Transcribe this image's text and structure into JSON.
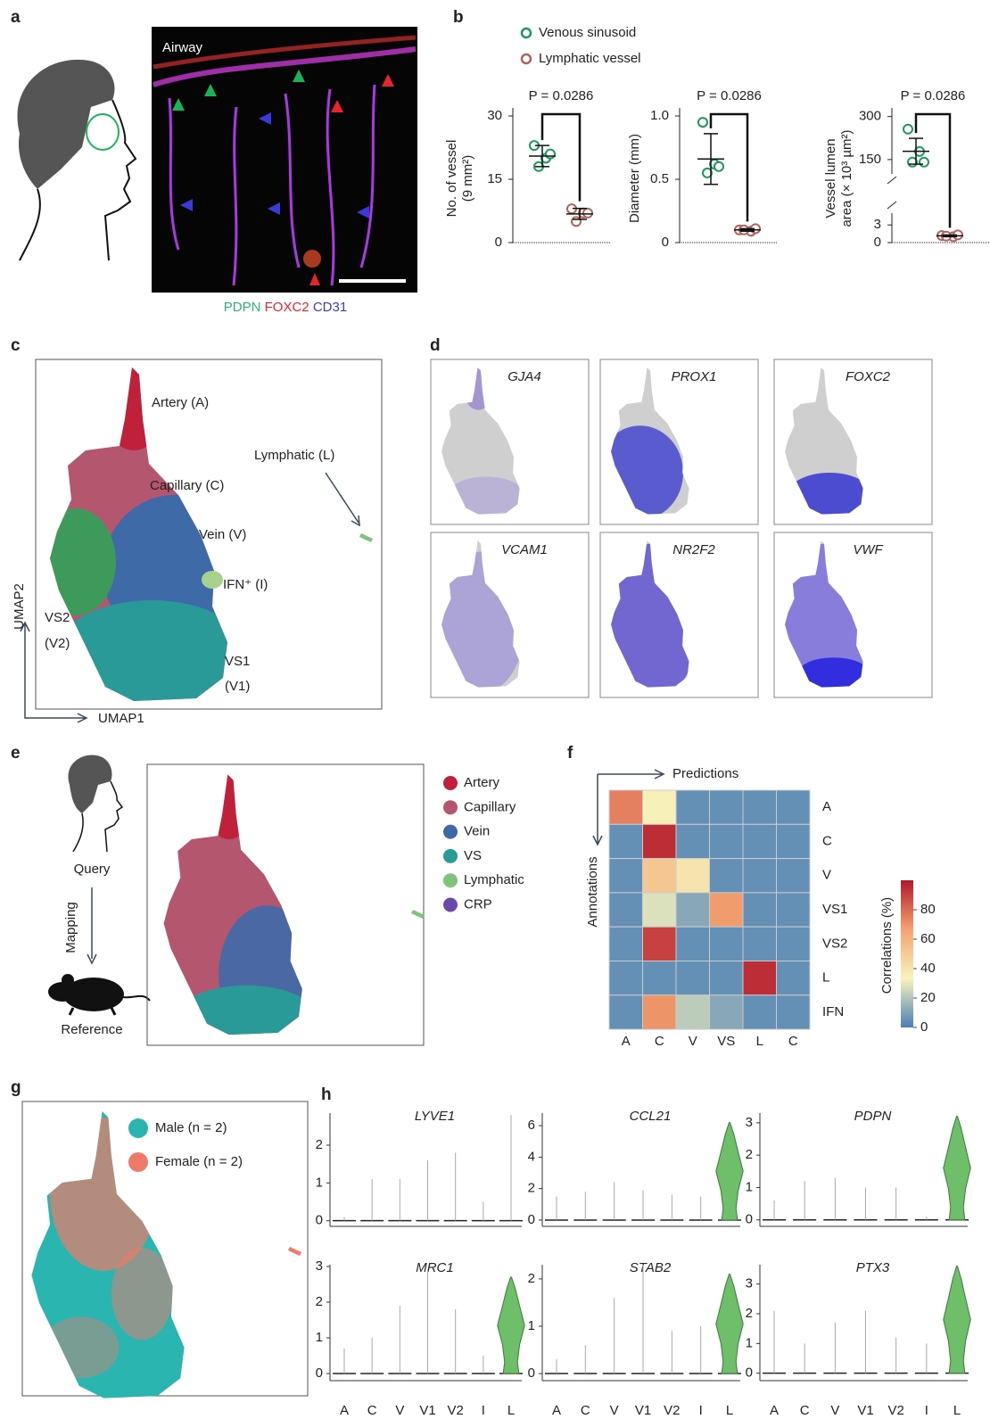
{
  "figure": {
    "panel_labels": [
      "a",
      "b",
      "c",
      "d",
      "e",
      "f",
      "g",
      "h"
    ],
    "a": {
      "image_label": "Airway",
      "stain_labels": [
        {
          "text": "PDPN",
          "color": "#2bb673"
        },
        {
          "text": "FOXC2",
          "color": "#e8232a"
        },
        {
          "text": "CD31",
          "color": "#3a3ad6"
        }
      ]
    },
    "c": {
      "labels": [
        "Artery (A)",
        "Capillary (C)",
        "Lymphatic (L)",
        "Vein (V)",
        "IFN⁺ (I)",
        "VS2",
        "(V2)",
        "VS1",
        "(V1)"
      ],
      "xlabel": "UMAP1",
      "ylabel": "UMAP2"
    },
    "d": {
      "genes": [
        "GJA4",
        "PROX1",
        "FOXC2",
        "VCAM1",
        "NR2F2",
        "VWF"
      ]
    },
    "e": {
      "query": "Query",
      "mapping": "Mapping",
      "reference": "Reference",
      "legend": [
        {
          "name": "Artery",
          "color": "#c0203a"
        },
        {
          "name": "Capillary",
          "color": "#b5566f"
        },
        {
          "name": "Vein",
          "color": "#3e6aa8"
        },
        {
          "name": "VS",
          "color": "#2a9a98"
        },
        {
          "name": "Lymphatic",
          "color": "#7fc47a"
        },
        {
          "name": "CRP",
          "color": "#6a4aa8"
        }
      ]
    },
    "g": {
      "legend": [
        {
          "name": "Male (n = 2)",
          "color": "#2ab5b0"
        },
        {
          "name": "Female (n = 2)",
          "color": "#f07a6a"
        }
      ]
    }
  },
  "chart_data": [
    {
      "type": "dot",
      "title": "P = 0.0286",
      "ylabel": [
        "No. of vessel",
        "(9 mm²)"
      ],
      "ylim": [
        0,
        30
      ],
      "yticks": [
        0,
        15,
        30
      ],
      "series": [
        {
          "name": "Venous sinusoid",
          "color": "#1a9a5a",
          "values": [
            23,
            20,
            18,
            21
          ],
          "mean": 20.5,
          "sd": 2.5
        },
        {
          "name": "Lymphatic vessel",
          "color": "#b0625c",
          "values": [
            8,
            7,
            5,
            7
          ],
          "mean": 6.8,
          "sd": 1.3
        }
      ]
    },
    {
      "type": "dot",
      "title": "P = 0.0286",
      "ylabel": [
        "Diameter (mm)"
      ],
      "ylim": [
        0,
        1
      ],
      "yticks": [
        0,
        0.5,
        {
          "value": 1,
          "label": "1.0"
        }
      ],
      "series": [
        {
          "name": "Venous sinusoid",
          "color": "#1a9a5a",
          "values": [
            0.95,
            0.62,
            0.55,
            0.6
          ],
          "mean": 0.66,
          "sd": 0.2
        },
        {
          "name": "Lymphatic vessel",
          "color": "#b0625c",
          "values": [
            0.1,
            0.09,
            0.1,
            0.11
          ],
          "mean": 0.1,
          "sd": 0.01
        }
      ]
    },
    {
      "type": "dot",
      "title": "P = 0.0286",
      "ylabel": [
        "Vessel lumen",
        "area (× 10³ µm²)"
      ],
      "ylim": [
        0,
        5
      ],
      "yticks": [
        0,
        3
      ],
      "ylim_upper": [
        100,
        330
      ],
      "yticks_upper": [
        150,
        300
      ],
      "series": [
        {
          "name": "Venous sinusoid",
          "color": "#1a9a5a",
          "values": [
            256,
            178,
            141,
            141
          ],
          "mean": 179,
          "sd": 45
        },
        {
          "name": "Lymphatic vessel",
          "color": "#b0625c",
          "values": [
            1.2,
            1.0,
            1.1,
            1.3
          ],
          "mean": 1.15,
          "sd": 0.15
        }
      ]
    },
    {
      "type": "heatmap",
      "xlabel": "Predictions",
      "ylabel": "Annotations",
      "colorbar_label": "Correlations (%)",
      "x_categories": [
        "A",
        "C",
        "V",
        "VS",
        "L",
        "C"
      ],
      "y_categories": [
        "A",
        "C",
        "V",
        "VS1",
        "VS2",
        "L",
        "IFN"
      ],
      "values": [
        [
          75,
          35,
          5,
          5,
          5,
          5
        ],
        [
          5,
          95,
          5,
          5,
          5,
          5
        ],
        [
          5,
          52,
          40,
          5,
          5,
          5
        ],
        [
          5,
          28,
          12,
          68,
          5,
          5
        ],
        [
          5,
          90,
          5,
          5,
          5,
          5
        ],
        [
          5,
          5,
          5,
          5,
          95,
          5
        ],
        [
          5,
          70,
          22,
          12,
          5,
          5
        ]
      ],
      "zlim": [
        0,
        100
      ],
      "zticks": [
        0,
        20,
        40,
        60,
        80
      ],
      "colors": [
        "#4a7eb4",
        "#f7f4bd",
        "#f4a270",
        "#b2182b"
      ]
    },
    {
      "type": "violin",
      "title": "LYVE1",
      "categories": [
        null,
        null,
        null,
        null,
        null,
        null,
        null
      ],
      "values": [
        0.1,
        1.1,
        1.1,
        1.6,
        1.8,
        0.5,
        2.8
      ],
      "violin": [
        false,
        false,
        false,
        false,
        false,
        false,
        false
      ],
      "ylim": [
        -0.15,
        2.85
      ],
      "yticks": [
        0,
        1,
        2
      ],
      "color": "#6fbf6a"
    },
    {
      "type": "violin",
      "title": "CCL21",
      "categories": [
        null,
        null,
        null,
        null,
        null,
        null,
        null
      ],
      "values": [
        1.5,
        1.8,
        2.4,
        1.9,
        1.6,
        1.5,
        6.2
      ],
      "violin": [
        false,
        false,
        false,
        false,
        false,
        false,
        true
      ],
      "ylim": [
        -0.4,
        6.8
      ],
      "yticks": [
        0,
        2,
        4,
        6
      ],
      "color": "#6fbf6a"
    },
    {
      "type": "violin",
      "title": "PDPN",
      "categories": [
        null,
        null,
        null,
        null,
        null,
        null,
        null
      ],
      "values": [
        0.6,
        1.2,
        1.3,
        1.0,
        1.0,
        0.1,
        3.2
      ],
      "violin": [
        false,
        false,
        false,
        false,
        false,
        false,
        true
      ],
      "ylim": [
        -0.2,
        3.3
      ],
      "yticks": [
        0,
        1,
        2,
        3
      ],
      "color": "#6fbf6a"
    },
    {
      "type": "violin",
      "title": "MRC1",
      "categories": [
        "A",
        "C",
        "V",
        "V1",
        "V2",
        "I",
        "L"
      ],
      "values": [
        0.7,
        1.0,
        1.9,
        2.9,
        1.8,
        0.5,
        2.7
      ],
      "violin": [
        false,
        false,
        false,
        false,
        false,
        false,
        true
      ],
      "ylim": [
        -0.2,
        3.05
      ],
      "yticks": [
        0,
        1,
        2,
        3
      ],
      "color": "#6fbf6a"
    },
    {
      "type": "violin",
      "title": "STAB2",
      "categories": [
        "A",
        "C",
        "V",
        "V1",
        "V2",
        "I",
        "L"
      ],
      "values": [
        0.3,
        0.6,
        1.6,
        2.3,
        0.9,
        1.0,
        2.1
      ],
      "violin": [
        false,
        false,
        false,
        false,
        false,
        false,
        true
      ],
      "ylim": [
        -0.15,
        2.3
      ],
      "yticks": [
        0,
        1,
        2
      ],
      "color": "#6fbf6a"
    },
    {
      "type": "violin",
      "title": "PTX3",
      "categories": [
        "A",
        "C",
        "V",
        "V1",
        "V2",
        "I",
        "L"
      ],
      "values": [
        2.1,
        1.0,
        1.7,
        2.1,
        1.2,
        1.0,
        3.6
      ],
      "violin": [
        false,
        false,
        false,
        false,
        false,
        false,
        true
      ],
      "ylim": [
        -0.25,
        3.65
      ],
      "yticks": [
        0,
        1,
        2,
        3
      ],
      "color": "#6fbf6a"
    }
  ]
}
